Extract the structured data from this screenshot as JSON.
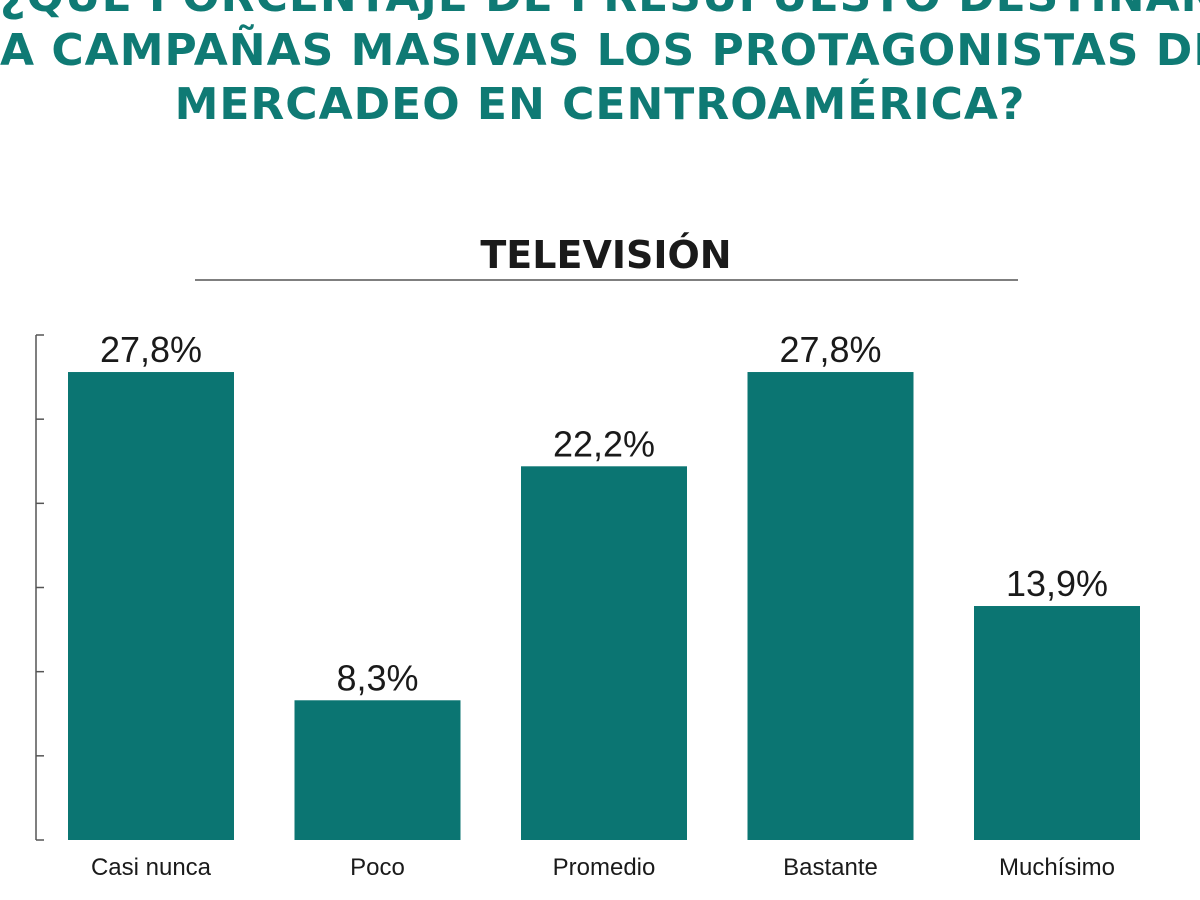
{
  "headline": {
    "line1": "¿QUÉ PORCENTAJE DE PRESUPUESTO DESTINAN",
    "line2": "A CAMPAÑAS MASIVAS LOS PROTAGONISTAS DEL",
    "line3": "MERCADEO EN CENTROAMÉRICA?"
  },
  "colors": {
    "headline": "#0f7a74",
    "bar": "#0b7572",
    "text": "#1a1a1a",
    "axis": "#555555"
  },
  "chart_data": {
    "type": "bar",
    "title": "TELEVISIÓN",
    "categories": [
      "Casi nunca",
      "Poco",
      "Promedio",
      "Bastante",
      "Muchísimo"
    ],
    "values": [
      27.8,
      8.3,
      22.2,
      27.8,
      13.9
    ],
    "value_labels": [
      "27,8%",
      "8,3%",
      "22,2%",
      "27,8%",
      "13,9%"
    ],
    "ylim": [
      0,
      30
    ],
    "grid": false,
    "legend": "none"
  }
}
